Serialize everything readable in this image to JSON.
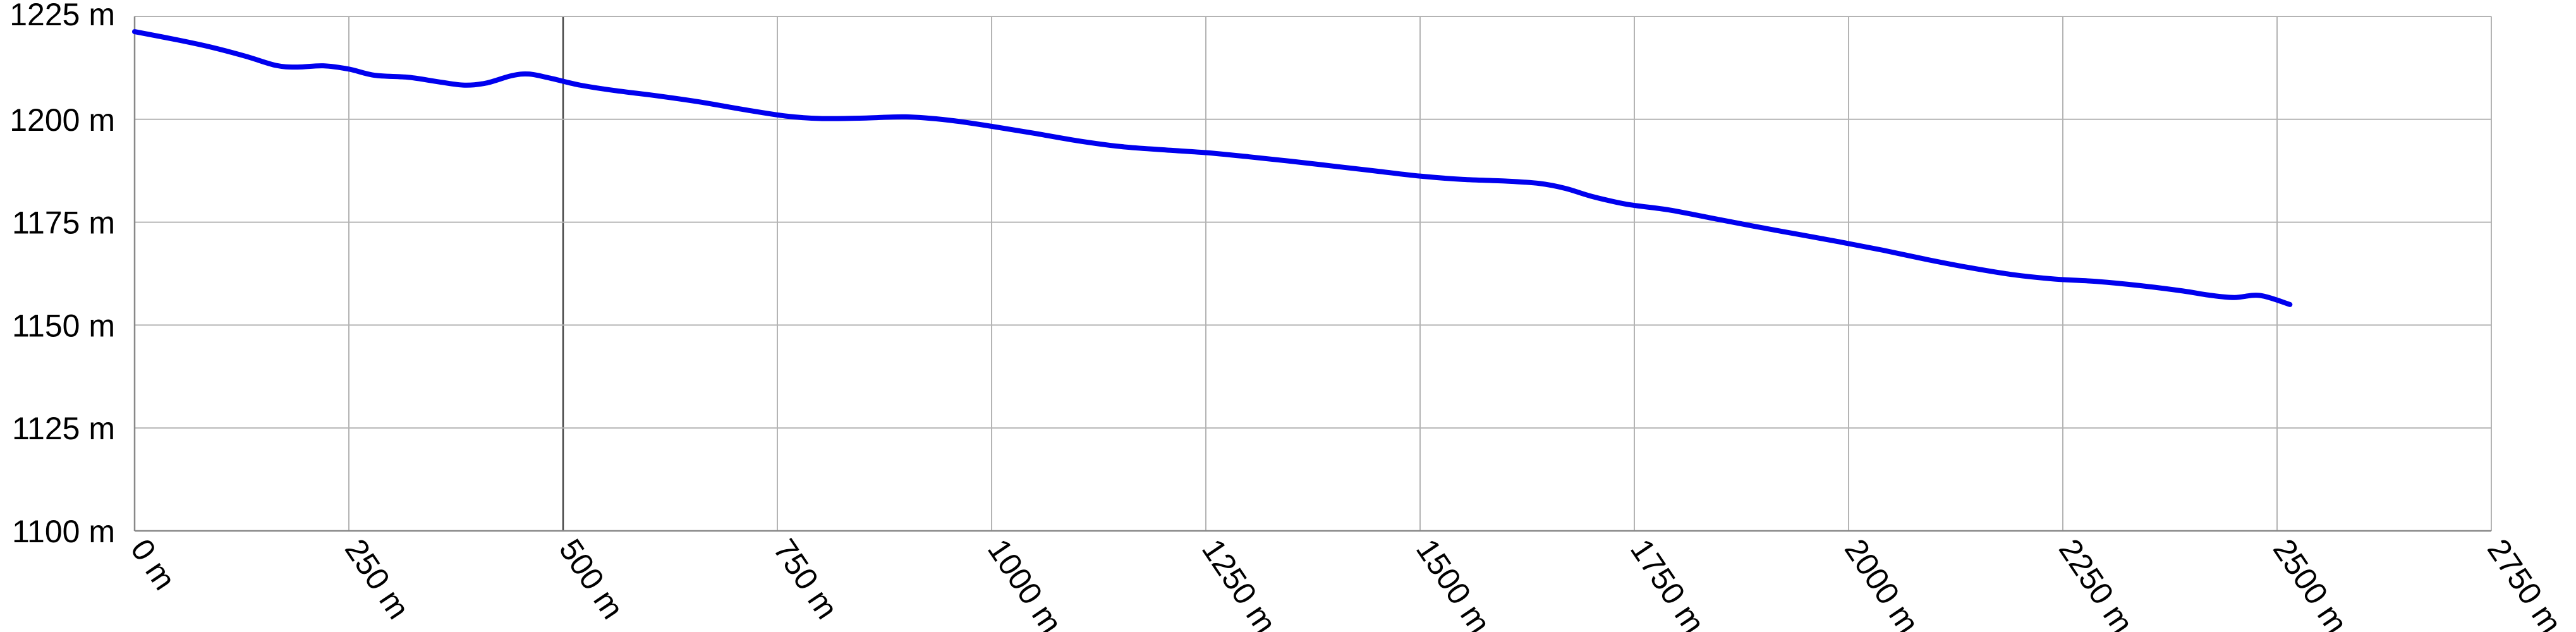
{
  "chart_data": {
    "type": "line",
    "title": "",
    "xlabel": "",
    "ylabel": "",
    "xlim": [
      0,
      2750
    ],
    "ylim": [
      1100,
      1225
    ],
    "grid": true,
    "legend": "none",
    "x_ticks": [
      {
        "value": 0,
        "label": "0 m"
      },
      {
        "value": 250,
        "label": "250 m"
      },
      {
        "value": 500,
        "label": "500 m"
      },
      {
        "value": 750,
        "label": "750 m"
      },
      {
        "value": 1000,
        "label": "1000 m"
      },
      {
        "value": 1250,
        "label": "1250 m"
      },
      {
        "value": 1500,
        "label": "1500 m"
      },
      {
        "value": 1750,
        "label": "1750 m"
      },
      {
        "value": 2000,
        "label": "2000 m"
      },
      {
        "value": 2250,
        "label": "2250 m"
      },
      {
        "value": 2500,
        "label": "2500 m"
      },
      {
        "value": 2750,
        "label": "2750 m"
      }
    ],
    "y_ticks": [
      {
        "value": 1100,
        "label": "1100 m"
      },
      {
        "value": 1125,
        "label": "1125 m"
      },
      {
        "value": 1150,
        "label": "1150 m"
      },
      {
        "value": 1175,
        "label": "1175 m"
      },
      {
        "value": 1200,
        "label": "1200 m"
      },
      {
        "value": 1225,
        "label": "1225 m"
      }
    ],
    "series": [
      {
        "color": "#0000ee",
        "points": [
          [
            0,
            1221.3
          ],
          [
            50,
            1219.3
          ],
          [
            90,
            1217.5
          ],
          [
            130,
            1215.3
          ],
          [
            165,
            1213.1
          ],
          [
            190,
            1212.7
          ],
          [
            220,
            1213.0
          ],
          [
            250,
            1212.2
          ],
          [
            280,
            1210.7
          ],
          [
            320,
            1210.2
          ],
          [
            355,
            1209.1
          ],
          [
            385,
            1208.3
          ],
          [
            410,
            1208.8
          ],
          [
            440,
            1210.6
          ],
          [
            460,
            1211.0
          ],
          [
            485,
            1210.0
          ],
          [
            520,
            1208.3
          ],
          [
            560,
            1207.0
          ],
          [
            610,
            1205.7
          ],
          [
            660,
            1204.2
          ],
          [
            710,
            1202.4
          ],
          [
            760,
            1200.8
          ],
          [
            800,
            1200.2
          ],
          [
            850,
            1200.3
          ],
          [
            900,
            1200.6
          ],
          [
            950,
            1199.8
          ],
          [
            1000,
            1198.3
          ],
          [
            1050,
            1196.6
          ],
          [
            1100,
            1194.8
          ],
          [
            1150,
            1193.4
          ],
          [
            1200,
            1192.6
          ],
          [
            1250,
            1191.9
          ],
          [
            1300,
            1190.9
          ],
          [
            1350,
            1189.8
          ],
          [
            1400,
            1188.6
          ],
          [
            1450,
            1187.4
          ],
          [
            1500,
            1186.2
          ],
          [
            1550,
            1185.4
          ],
          [
            1600,
            1185.0
          ],
          [
            1640,
            1184.4
          ],
          [
            1670,
            1183.2
          ],
          [
            1700,
            1181.3
          ],
          [
            1740,
            1179.4
          ],
          [
            1790,
            1178.0
          ],
          [
            1840,
            1176.0
          ],
          [
            1890,
            1174.0
          ],
          [
            1940,
            1172.1
          ],
          [
            1990,
            1170.2
          ],
          [
            2040,
            1168.2
          ],
          [
            2090,
            1166.0
          ],
          [
            2140,
            1164.0
          ],
          [
            2190,
            1162.3
          ],
          [
            2240,
            1161.2
          ],
          [
            2290,
            1160.6
          ],
          [
            2340,
            1159.6
          ],
          [
            2390,
            1158.3
          ],
          [
            2420,
            1157.3
          ],
          [
            2450,
            1156.7
          ],
          [
            2480,
            1157.2
          ],
          [
            2515,
            1155.0
          ]
        ]
      }
    ]
  }
}
